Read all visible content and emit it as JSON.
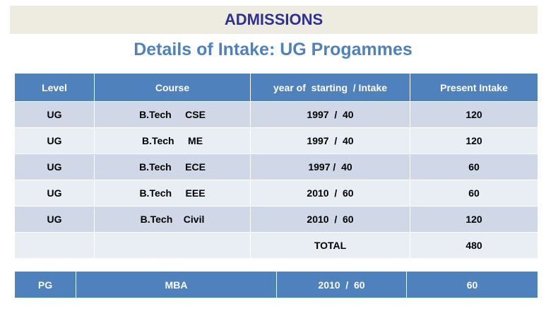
{
  "header": {
    "banner": "ADMISSIONS",
    "title": "Details of Intake: UG Progammes"
  },
  "ug_table": {
    "columns": [
      "Level",
      "Course",
      "year of  starting  / Intake",
      "Present Intake"
    ],
    "rows": [
      [
        "UG",
        "B.Tech     CSE",
        "1997  /  40",
        "120"
      ],
      [
        "UG",
        "B.Tech     ME",
        "1997  /  40",
        "120"
      ],
      [
        "UG",
        "B.Tech     ECE",
        "1997 /  40",
        "60"
      ],
      [
        "UG",
        "B.Tech     EEE",
        "2010  /  60",
        "60"
      ],
      [
        "UG",
        "B.Tech    Civil",
        "2010  /  60",
        "120"
      ]
    ],
    "total_label": "TOTAL",
    "total_value": "480"
  },
  "pg_table": {
    "row": [
      "PG",
      "MBA",
      "2010  /  60",
      "60"
    ]
  },
  "colors": {
    "banner_bg": "#eeece1",
    "banner_text": "#2e3192",
    "title_text": "#4f81bd",
    "header_bg": "#4f81bd",
    "row_dark": "#d0d8e8",
    "row_light": "#e9edf4"
  }
}
